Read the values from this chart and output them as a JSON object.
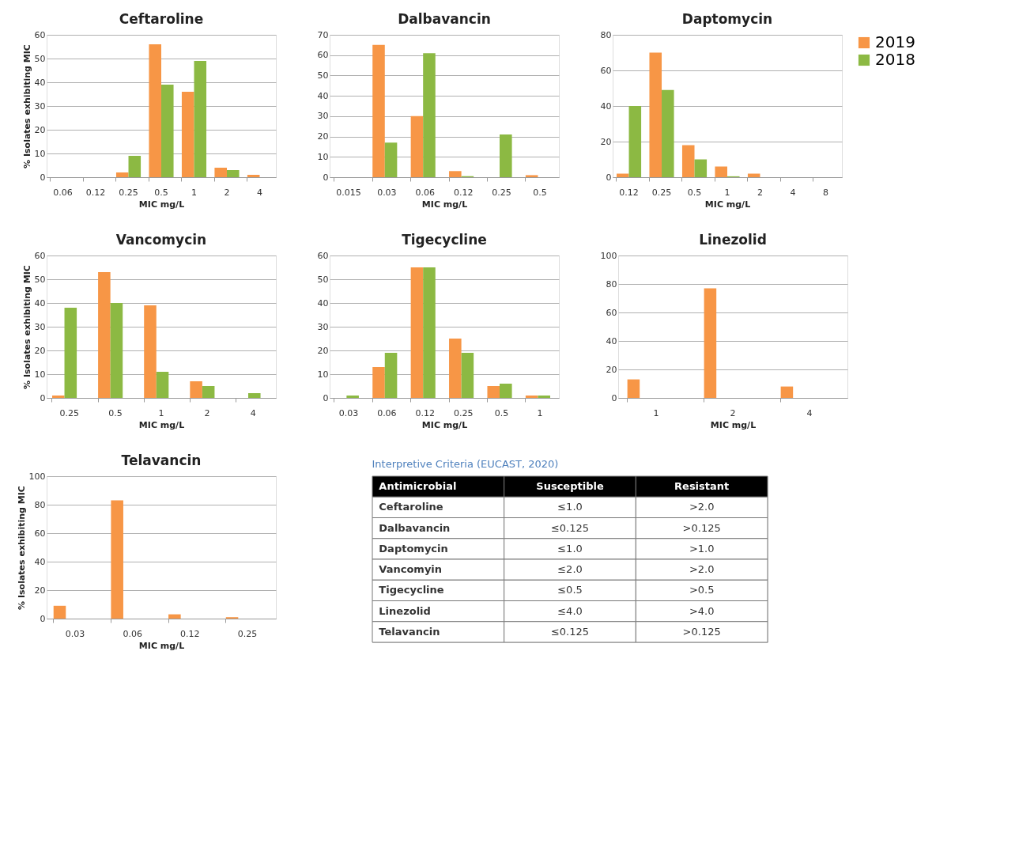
{
  "chart_data": [
    {
      "type": "bar",
      "title": "Ceftaroline",
      "xlabel": "MIC mg/L",
      "ylabel": "% Isolates exhibiting MIC",
      "categories": [
        "0.06",
        "0.12",
        "0.25",
        "0.5",
        "1",
        "2",
        "4"
      ],
      "ylim": [
        0,
        60
      ],
      "yticks": [
        0,
        10,
        20,
        30,
        40,
        50,
        60
      ],
      "grid": "y",
      "series": [
        {
          "color": "#f79646",
          "values": [
            0,
            0,
            2,
            56,
            36,
            4,
            1
          ]
        },
        {
          "color": "#8cb943",
          "values": [
            0,
            0,
            9,
            39,
            49,
            3,
            0
          ]
        }
      ]
    },
    {
      "type": "bar",
      "title": "Dalbavancin",
      "xlabel": "MIC mg/L",
      "categories": [
        "0.015",
        "0.03",
        "0.06",
        "0.12",
        "0.25",
        "0.5"
      ],
      "ylim": [
        0,
        70
      ],
      "yticks": [
        0,
        10,
        20,
        30,
        40,
        50,
        60,
        70
      ],
      "grid": "y",
      "series": [
        {
          "color": "#f79646",
          "values": [
            0,
            65,
            30,
            3,
            0,
            1
          ]
        },
        {
          "color": "#8cb943",
          "values": [
            0,
            17,
            61,
            0.5,
            21,
            0
          ]
        }
      ]
    },
    {
      "type": "bar",
      "title": "Daptomycin",
      "xlabel": "MIC mg/L",
      "categories": [
        "0.12",
        "0.25",
        "0.5",
        "1",
        "2",
        "4",
        "8"
      ],
      "ylim": [
        0,
        80
      ],
      "yticks": [
        0,
        20,
        40,
        60,
        80
      ],
      "grid": "y",
      "legend": "top right",
      "series": [
        {
          "name": "2019",
          "color": "#f79646",
          "values": [
            2,
            70,
            18,
            6,
            2,
            0,
            0
          ]
        },
        {
          "name": "2018",
          "color": "#8cb943",
          "values": [
            40,
            49,
            10,
            0.5,
            0,
            0,
            0
          ]
        }
      ]
    },
    {
      "type": "bar",
      "title": "Vancomycin",
      "xlabel": "MIC mg/L",
      "ylabel": "% Isolates exhibiting MIC",
      "categories": [
        "0.25",
        "0.5",
        "1",
        "2",
        "4"
      ],
      "ylim": [
        0,
        60
      ],
      "yticks": [
        0,
        10,
        20,
        30,
        40,
        50,
        60
      ],
      "grid": "y",
      "series": [
        {
          "color": "#f79646",
          "values": [
            1,
            53,
            39,
            7,
            0
          ]
        },
        {
          "color": "#8cb943",
          "values": [
            38,
            40,
            11,
            5,
            2
          ]
        }
      ]
    },
    {
      "type": "bar",
      "title": "Tigecycline",
      "xlabel": "MIC mg/L",
      "categories": [
        "0.03",
        "0.06",
        "0.12",
        "0.25",
        "0.5",
        "1"
      ],
      "ylim": [
        0,
        60
      ],
      "yticks": [
        0,
        10,
        20,
        30,
        40,
        50,
        60
      ],
      "grid": "y",
      "series": [
        {
          "color": "#f79646",
          "values": [
            0,
            13,
            55,
            25,
            5,
            1
          ]
        },
        {
          "color": "#8cb943",
          "values": [
            1,
            19,
            55,
            19,
            6,
            1
          ]
        }
      ]
    },
    {
      "type": "bar",
      "title": "Linezolid",
      "xlabel": "MIC mg/L",
      "categories": [
        "1",
        "2",
        "4"
      ],
      "ylim": [
        0,
        100
      ],
      "yticks": [
        0,
        20,
        40,
        60,
        80,
        100
      ],
      "grid": "y",
      "series": [
        {
          "color": "#f79646",
          "values": [
            13,
            77,
            8
          ]
        }
      ]
    },
    {
      "type": "bar",
      "title": "Telavancin",
      "xlabel": "MIC mg/L",
      "ylabel": "% Isolates exhibiting MIC",
      "categories": [
        "0.03",
        "0.06",
        "0.12",
        "0.25"
      ],
      "ylim": [
        0,
        100
      ],
      "yticks": [
        0,
        20,
        40,
        60,
        80,
        100
      ],
      "grid": "y",
      "series": [
        {
          "color": "#f79646",
          "values": [
            9,
            83,
            3,
            1
          ]
        }
      ]
    },
    {
      "type": "other",
      "title": "Interpretive Criteria (EUCAST, 2020)",
      "categories": [
        "Antimicrobial",
        "Susceptible",
        "Resistant"
      ],
      "annotations": [
        "Ceftaroline",
        "≤1.0",
        ">2.0",
        "Dalbavancin",
        "≤0.125",
        ">0.125",
        "Daptomycin",
        "≤1.0",
        ">1.0",
        "Vancomyin",
        "≤2.0",
        ">2.0",
        "Tigecycline",
        "≤0.5",
        ">0.5",
        "Linezolid",
        "≤4.0",
        ">4.0",
        "Telavancin",
        "≤0.125",
        ">0.125"
      ]
    }
  ]
}
